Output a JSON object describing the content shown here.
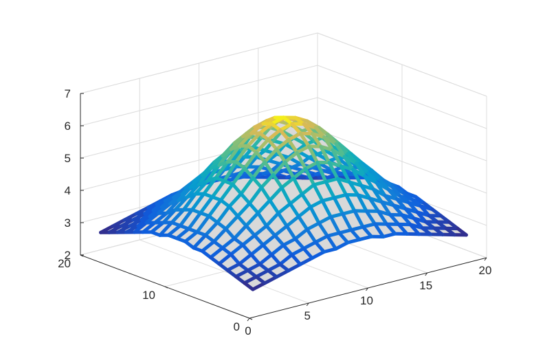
{
  "chart_data": {
    "type": "surface",
    "title": "",
    "xlabel": "",
    "ylabel": "",
    "zlabel": "",
    "xlim": [
      0,
      20
    ],
    "ylim": [
      0,
      20
    ],
    "zlim": [
      2,
      7
    ],
    "x_ticks": [
      0,
      5,
      10,
      15,
      20
    ],
    "y_ticks": [
      0,
      10,
      20
    ],
    "z_ticks": [
      2,
      3,
      4,
      5,
      6,
      7
    ],
    "x_tick_labels": [
      "0",
      "5",
      "10",
      "15",
      "20"
    ],
    "y_tick_labels": [
      "0",
      "10",
      "20"
    ],
    "z_tick_labels": [
      "2",
      "3",
      "4",
      "5",
      "6",
      "7"
    ],
    "grid": true,
    "colormap": "parula",
    "face_color": "#d9d9d9",
    "mesh_x_range": [
      1,
      19
    ],
    "mesh_y_range": [
      1,
      19
    ],
    "mesh_resolution": 18,
    "surface_description": "bump peaking at the center of the mesh",
    "z_values": [
      [
        2.7,
        2.8,
        2.9,
        3.0,
        3.1,
        3.2,
        3.3,
        3.3,
        3.4,
        3.4,
        3.4,
        3.3,
        3.3,
        3.2,
        3.1,
        3.0,
        2.9,
        2.8,
        2.7
      ],
      [
        2.8,
        2.9,
        3.0,
        3.1,
        3.3,
        3.4,
        3.5,
        3.6,
        3.6,
        3.6,
        3.6,
        3.6,
        3.5,
        3.4,
        3.3,
        3.1,
        3.0,
        2.9,
        2.8
      ],
      [
        2.9,
        3.0,
        3.1,
        3.3,
        3.5,
        3.6,
        3.8,
        3.9,
        4.0,
        4.0,
        4.0,
        3.9,
        3.8,
        3.6,
        3.5,
        3.3,
        3.1,
        3.0,
        2.9
      ],
      [
        3.0,
        3.1,
        3.3,
        3.5,
        3.7,
        3.9,
        4.1,
        4.3,
        4.4,
        4.4,
        4.4,
        4.3,
        4.1,
        3.9,
        3.7,
        3.5,
        3.3,
        3.1,
        3.0
      ],
      [
        3.1,
        3.3,
        3.5,
        3.7,
        3.9,
        4.2,
        4.4,
        4.6,
        4.8,
        4.8,
        4.8,
        4.6,
        4.4,
        4.2,
        3.9,
        3.7,
        3.5,
        3.3,
        3.1
      ],
      [
        3.2,
        3.4,
        3.6,
        3.9,
        4.2,
        4.5,
        4.8,
        5.0,
        5.2,
        5.3,
        5.2,
        5.0,
        4.8,
        4.5,
        4.2,
        3.9,
        3.6,
        3.4,
        3.2
      ],
      [
        3.3,
        3.5,
        3.8,
        4.1,
        4.4,
        4.8,
        5.1,
        5.4,
        5.6,
        5.7,
        5.6,
        5.4,
        5.1,
        4.8,
        4.4,
        4.1,
        3.8,
        3.5,
        3.3
      ],
      [
        3.3,
        3.6,
        3.9,
        4.3,
        4.6,
        5.0,
        5.4,
        5.7,
        5.9,
        6.0,
        5.9,
        5.7,
        5.4,
        5.0,
        4.6,
        4.3,
        3.9,
        3.6,
        3.3
      ],
      [
        3.4,
        3.6,
        4.0,
        4.4,
        4.8,
        5.2,
        5.6,
        5.9,
        6.1,
        6.2,
        6.1,
        5.9,
        5.6,
        5.2,
        4.8,
        4.4,
        4.0,
        3.6,
        3.4
      ],
      [
        3.4,
        3.6,
        4.0,
        4.4,
        4.8,
        5.3,
        5.7,
        6.0,
        6.2,
        6.3,
        6.2,
        6.0,
        5.7,
        5.3,
        4.8,
        4.4,
        4.0,
        3.6,
        3.4
      ],
      [
        3.4,
        3.6,
        4.0,
        4.4,
        4.8,
        5.2,
        5.6,
        5.9,
        6.1,
        6.2,
        6.1,
        5.9,
        5.6,
        5.2,
        4.8,
        4.4,
        4.0,
        3.6,
        3.4
      ],
      [
        3.3,
        3.6,
        3.9,
        4.3,
        4.6,
        5.0,
        5.4,
        5.7,
        5.9,
        6.0,
        5.9,
        5.7,
        5.4,
        5.0,
        4.6,
        4.3,
        3.9,
        3.6,
        3.3
      ],
      [
        3.3,
        3.5,
        3.8,
        4.1,
        4.4,
        4.8,
        5.1,
        5.4,
        5.6,
        5.7,
        5.6,
        5.4,
        5.1,
        4.8,
        4.4,
        4.1,
        3.8,
        3.5,
        3.3
      ],
      [
        3.2,
        3.4,
        3.6,
        3.9,
        4.2,
        4.5,
        4.8,
        5.0,
        5.2,
        5.3,
        5.2,
        5.0,
        4.8,
        4.5,
        4.2,
        3.9,
        3.6,
        3.4,
        3.2
      ],
      [
        3.1,
        3.3,
        3.5,
        3.7,
        3.9,
        4.2,
        4.4,
        4.6,
        4.8,
        4.8,
        4.8,
        4.6,
        4.4,
        4.2,
        3.9,
        3.7,
        3.5,
        3.3,
        3.1
      ],
      [
        3.0,
        3.1,
        3.3,
        3.5,
        3.7,
        3.9,
        4.1,
        4.3,
        4.4,
        4.4,
        4.4,
        4.3,
        4.1,
        3.9,
        3.7,
        3.5,
        3.3,
        3.1,
        3.0
      ],
      [
        2.9,
        3.0,
        3.1,
        3.3,
        3.5,
        3.6,
        3.8,
        3.9,
        4.0,
        4.0,
        4.0,
        3.9,
        3.8,
        3.6,
        3.5,
        3.3,
        3.1,
        3.0,
        2.9
      ],
      [
        2.8,
        2.9,
        3.0,
        3.1,
        3.3,
        3.4,
        3.5,
        3.6,
        3.6,
        3.6,
        3.6,
        3.6,
        3.5,
        3.4,
        3.3,
        3.1,
        3.0,
        2.9,
        2.8
      ],
      [
        2.7,
        2.8,
        2.9,
        3.0,
        3.1,
        3.2,
        3.3,
        3.3,
        3.4,
        3.4,
        3.4,
        3.3,
        3.3,
        3.2,
        3.1,
        3.0,
        2.9,
        2.8,
        2.7
      ]
    ]
  }
}
